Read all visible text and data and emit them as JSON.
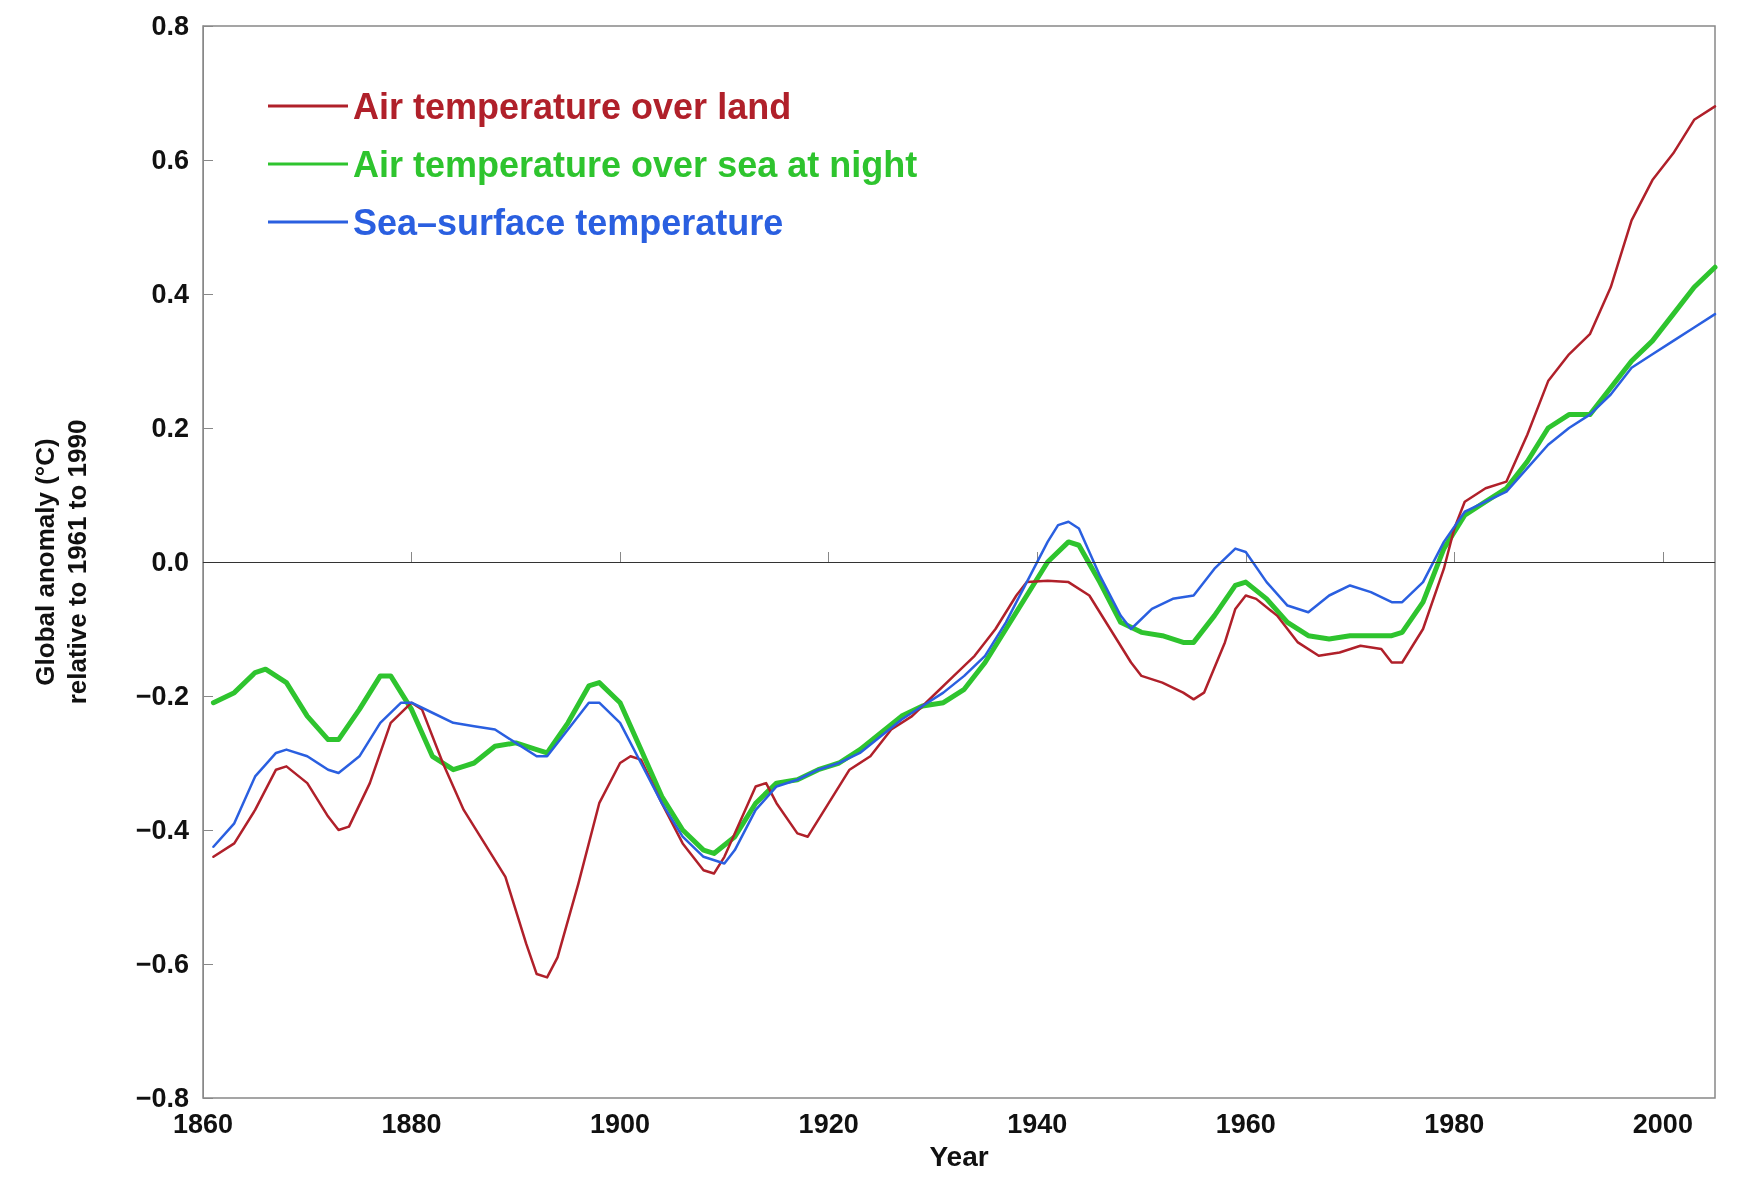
{
  "chart_data": {
    "type": "line",
    "xlabel": "Year",
    "ylabel": "Global anomaly (°C)\nrelative to 1961 to 1990",
    "xlim": [
      1860,
      2005
    ],
    "xticks": [
      1860,
      1880,
      1900,
      1920,
      1940,
      1960,
      1980,
      2000
    ],
    "ylim": [
      -0.8,
      0.8
    ],
    "yticks": [
      {
        "value": -0.8,
        "label": "−0.8"
      },
      {
        "value": -0.6,
        "label": "−0.6"
      },
      {
        "value": -0.4,
        "label": "−0.4"
      },
      {
        "value": -0.2,
        "label": "−0.2"
      },
      {
        "value": 0,
        "label": "0.0"
      },
      {
        "value": 0.2,
        "label": "0.2"
      },
      {
        "value": 0.4,
        "label": "0.4"
      },
      {
        "value": 0.6,
        "label": "0.6"
      },
      {
        "value": 0.8,
        "label": "0.8"
      }
    ],
    "grid": false,
    "legend": "top left",
    "marker": "none",
    "line_style": "solid",
    "ref_lines": [
      {
        "axis": "y",
        "value": 0,
        "color": "#333333"
      }
    ],
    "series": [
      {
        "name": "Air temperature over land",
        "color": "#b0202a",
        "x": [
          1861,
          1863,
          1865,
          1867,
          1868,
          1870,
          1872,
          1873,
          1874,
          1876,
          1878,
          1880,
          1881,
          1883,
          1885,
          1887,
          1889,
          1891,
          1892,
          1893,
          1894,
          1896,
          1898,
          1900,
          1901,
          1902,
          1904,
          1906,
          1908,
          1909,
          1910,
          1912,
          1913,
          1914,
          1915,
          1917,
          1918,
          1920,
          1922,
          1924,
          1926,
          1928,
          1930,
          1932,
          1934,
          1936,
          1938,
          1939,
          1941,
          1943,
          1945,
          1947,
          1949,
          1950,
          1952,
          1954,
          1955,
          1956,
          1958,
          1959,
          1960,
          1961,
          1963,
          1965,
          1967,
          1969,
          1971,
          1973,
          1974,
          1975,
          1977,
          1979,
          1980,
          1981,
          1983,
          1985,
          1987,
          1989,
          1991,
          1993,
          1995,
          1997,
          1999,
          2001,
          2003,
          2005
        ],
        "values": [
          -0.44,
          -0.42,
          -0.37,
          -0.31,
          -0.305,
          -0.33,
          -0.38,
          -0.4,
          -0.395,
          -0.33,
          -0.24,
          -0.21,
          -0.22,
          -0.3,
          -0.37,
          -0.42,
          -0.47,
          -0.57,
          -0.615,
          -0.62,
          -0.59,
          -0.48,
          -0.36,
          -0.3,
          -0.29,
          -0.295,
          -0.36,
          -0.42,
          -0.46,
          -0.465,
          -0.44,
          -0.37,
          -0.335,
          -0.33,
          -0.36,
          -0.405,
          -0.41,
          -0.36,
          -0.31,
          -0.29,
          -0.25,
          -0.23,
          -0.2,
          -0.17,
          -0.14,
          -0.1,
          -0.05,
          -0.03,
          -0.028,
          -0.03,
          -0.05,
          -0.1,
          -0.15,
          -0.17,
          -0.18,
          -0.195,
          -0.205,
          -0.195,
          -0.12,
          -0.07,
          -0.05,
          -0.055,
          -0.08,
          -0.12,
          -0.14,
          -0.135,
          -0.125,
          -0.13,
          -0.15,
          -0.15,
          -0.1,
          -0.01,
          0.05,
          0.09,
          0.11,
          0.12,
          0.19,
          0.27,
          0.31,
          0.34,
          0.41,
          0.51,
          0.57,
          0.61,
          0.66,
          0.68
        ]
      },
      {
        "name": "Air temperature over sea at night",
        "color": "#2ec42e",
        "x": [
          1861,
          1863,
          1865,
          1866,
          1868,
          1870,
          1872,
          1873,
          1875,
          1877,
          1878,
          1880,
          1882,
          1884,
          1886,
          1888,
          1890,
          1892,
          1893,
          1895,
          1897,
          1898,
          1900,
          1902,
          1904,
          1906,
          1908,
          1909,
          1911,
          1913,
          1915,
          1917,
          1919,
          1921,
          1923,
          1925,
          1927,
          1929,
          1931,
          1933,
          1935,
          1937,
          1939,
          1941,
          1943,
          1944,
          1946,
          1948,
          1950,
          1952,
          1954,
          1955,
          1957,
          1959,
          1960,
          1962,
          1964,
          1966,
          1968,
          1970,
          1972,
          1974,
          1975,
          1977,
          1979,
          1981,
          1983,
          1985,
          1987,
          1989,
          1991,
          1993,
          1995,
          1997,
          1999,
          2001,
          2003,
          2005
        ],
        "values": [
          -0.21,
          -0.195,
          -0.165,
          -0.16,
          -0.18,
          -0.23,
          -0.265,
          -0.265,
          -0.22,
          -0.17,
          -0.17,
          -0.22,
          -0.29,
          -0.31,
          -0.3,
          -0.275,
          -0.27,
          -0.28,
          -0.285,
          -0.24,
          -0.185,
          -0.18,
          -0.21,
          -0.28,
          -0.35,
          -0.4,
          -0.43,
          -0.435,
          -0.41,
          -0.36,
          -0.33,
          -0.325,
          -0.31,
          -0.3,
          -0.28,
          -0.255,
          -0.23,
          -0.215,
          -0.21,
          -0.19,
          -0.15,
          -0.1,
          -0.05,
          0,
          0.03,
          0.025,
          -0.03,
          -0.09,
          -0.105,
          -0.11,
          -0.12,
          -0.12,
          -0.08,
          -0.035,
          -0.03,
          -0.055,
          -0.09,
          -0.11,
          -0.115,
          -0.11,
          -0.11,
          -0.11,
          -0.105,
          -0.06,
          0.02,
          0.07,
          0.09,
          0.11,
          0.15,
          0.2,
          0.22,
          0.22,
          0.26,
          0.3,
          0.33,
          0.37,
          0.41,
          0.44
        ]
      },
      {
        "name": "Sea–surface temperature",
        "color": "#2a5fe0",
        "x": [
          1861,
          1863,
          1865,
          1867,
          1868,
          1870,
          1872,
          1873,
          1875,
          1877,
          1879,
          1880,
          1882,
          1884,
          1886,
          1888,
          1890,
          1892,
          1893,
          1895,
          1897,
          1898,
          1900,
          1902,
          1904,
          1906,
          1908,
          1910,
          1911,
          1913,
          1915,
          1917,
          1919,
          1921,
          1923,
          1925,
          1927,
          1929,
          1931,
          1933,
          1935,
          1937,
          1939,
          1941,
          1942,
          1943,
          1944,
          1946,
          1948,
          1949,
          1951,
          1953,
          1955,
          1957,
          1959,
          1960,
          1962,
          1964,
          1966,
          1968,
          1970,
          1972,
          1974,
          1975,
          1977,
          1979,
          1981,
          1983,
          1985,
          1987,
          1989,
          1991,
          1993,
          1995,
          1997,
          1999,
          2001,
          2003,
          2005
        ],
        "values": [
          -0.425,
          -0.39,
          -0.32,
          -0.285,
          -0.28,
          -0.29,
          -0.31,
          -0.315,
          -0.29,
          -0.24,
          -0.21,
          -0.21,
          -0.225,
          -0.24,
          -0.245,
          -0.25,
          -0.27,
          -0.29,
          -0.29,
          -0.25,
          -0.21,
          -0.21,
          -0.24,
          -0.3,
          -0.36,
          -0.41,
          -0.44,
          -0.45,
          -0.43,
          -0.37,
          -0.335,
          -0.325,
          -0.31,
          -0.3,
          -0.285,
          -0.26,
          -0.235,
          -0.215,
          -0.195,
          -0.17,
          -0.14,
          -0.09,
          -0.03,
          0.03,
          0.055,
          0.06,
          0.05,
          -0.02,
          -0.08,
          -0.1,
          -0.07,
          -0.055,
          -0.05,
          -0.01,
          0.02,
          0.015,
          -0.03,
          -0.065,
          -0.075,
          -0.05,
          -0.035,
          -0.045,
          -0.06,
          -0.06,
          -0.03,
          0.03,
          0.075,
          0.09,
          0.105,
          0.14,
          0.175,
          0.2,
          0.22,
          0.25,
          0.29,
          0.31,
          0.33,
          0.35,
          0.37
        ]
      }
    ]
  }
}
